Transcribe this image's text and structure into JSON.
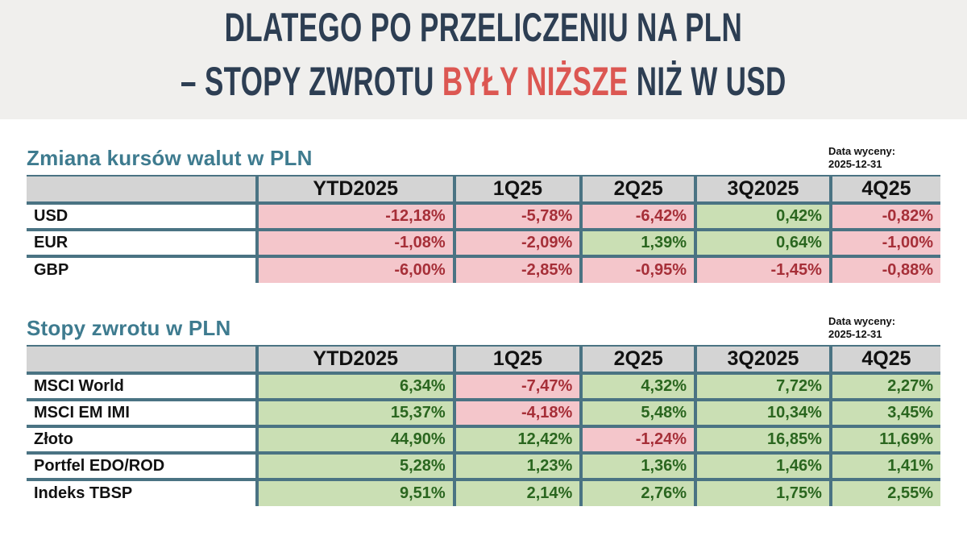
{
  "headline": {
    "line1": "DLATEGO PO PRZELICZENIU NA PLN",
    "line2_prefix": "– STOPY ZWROTU ",
    "line2_highlight": "BYŁY NIŻSZE",
    "line2_suffix": " NIŻ W USD"
  },
  "valuation": {
    "label": "Data wyceny:",
    "date": "2025-12-31"
  },
  "colors": {
    "band_bg": "#f0efed",
    "navy": "#2d3e53",
    "red": "#dc5752",
    "teal": "#3e7b8f",
    "border_teal": "#4a7383",
    "header_gray": "#d4d4d4",
    "pink_bg": "#f4c6cb",
    "red_text": "#a62f38",
    "green_bg": "#cadfb4",
    "green_text": "#2a661f",
    "label_text": "#111111"
  },
  "chart_data": [
    {
      "type": "table",
      "title": "Zmiana kursów walut w PLN",
      "categories": [
        "YTD2025",
        "1Q25",
        "2Q25",
        "3Q2025",
        "4Q25"
      ],
      "series": [
        {
          "name": "USD",
          "values": [
            -12.18,
            -5.78,
            -6.42,
            0.42,
            -0.82
          ]
        },
        {
          "name": "EUR",
          "values": [
            -1.08,
            -2.09,
            1.39,
            0.64,
            -1.0
          ]
        },
        {
          "name": "GBP",
          "values": [
            -6.0,
            -2.85,
            -0.95,
            -1.45,
            -0.88
          ]
        }
      ],
      "unit": "%",
      "value_format": "comma-decimal, 2 places, suffix %",
      "cell_color_rule": "negative = pink/red, positive = green"
    },
    {
      "type": "table",
      "title": "Stopy zwrotu w PLN",
      "categories": [
        "YTD2025",
        "1Q25",
        "2Q25",
        "3Q2025",
        "4Q25"
      ],
      "series": [
        {
          "name": "MSCI World",
          "values": [
            6.34,
            -7.47,
            4.32,
            7.72,
            2.27
          ]
        },
        {
          "name": "MSCI EM IMI",
          "values": [
            15.37,
            -4.18,
            5.48,
            10.34,
            3.45
          ]
        },
        {
          "name": "Złoto",
          "values": [
            44.9,
            12.42,
            -1.24,
            16.85,
            11.69
          ]
        },
        {
          "name": "Portfel EDO/ROD",
          "values": [
            5.28,
            1.23,
            1.36,
            1.46,
            1.41
          ]
        },
        {
          "name": "Indeks TBSP",
          "values": [
            9.51,
            2.14,
            2.76,
            1.75,
            2.55
          ]
        }
      ],
      "unit": "%",
      "value_format": "comma-decimal, 2 places, suffix %",
      "cell_color_rule": "negative = pink/red, positive = green"
    }
  ]
}
